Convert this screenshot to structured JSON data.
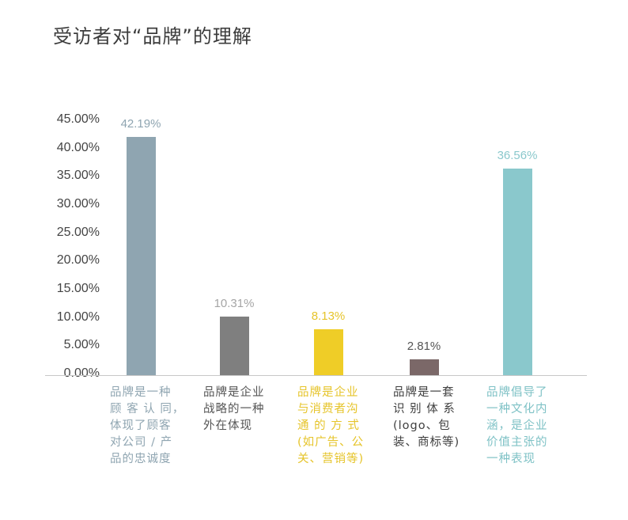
{
  "title": "受访者对“品牌”的理解",
  "y_axis": {
    "ticks": [
      "45.00%",
      "40.00%",
      "35.00%",
      "30.00%",
      "25.00%",
      "20.00%",
      "15.00%",
      "10.00%",
      "5.00%",
      "0.00%"
    ]
  },
  "bars": [
    {
      "value_label": "42.19%",
      "color": "#8fa5b1",
      "label_lines": [
        "品牌是一种",
        "顾 客 认 同，",
        "体现了顾客",
        "对公司 / 产",
        "品的忠诚度"
      ]
    },
    {
      "value_label": "10.31%",
      "color": "#7f7f7f",
      "label_lines": [
        "品牌是企业",
        "战略的一种",
        "外在体现"
      ]
    },
    {
      "value_label": "8.13%",
      "color": "#efcd27",
      "label_lines": [
        "品牌是企业",
        "与消费者沟",
        "通 的 方 式",
        "(如广告、公",
        "关、营销等)"
      ]
    },
    {
      "value_label": "2.81%",
      "color": "#7b6868",
      "label_lines": [
        "品牌是一套",
        "识 别 体 系",
        "(logo、包",
        "装、商标等)"
      ]
    },
    {
      "value_label": "36.56%",
      "color": "#8ac8cc",
      "label_lines": [
        "品牌倡导了",
        "一种文化内",
        "涵，是企业",
        "价值主张的",
        "一种表现"
      ]
    }
  ],
  "chart_data": {
    "type": "bar",
    "title": "受访者对“品牌”的理解",
    "categories": [
      "品牌是一种顾客认同，体现了顾客对公司/产品的忠诚度",
      "品牌是企业战略的一种外在体现",
      "品牌是企业与消费者沟通的方式(如广告、公关、营销等)",
      "品牌是一套识别体系(logo、包装、商标等)",
      "品牌倡导了一种文化内涵，是企业价值主张的一种表现"
    ],
    "values": [
      42.19,
      10.31,
      8.13,
      2.81,
      36.56
    ],
    "value_labels": [
      "42.19%",
      "10.31%",
      "8.13%",
      "2.81%",
      "36.56%"
    ],
    "colors": [
      "#8fa5b1",
      "#7f7f7f",
      "#efcd27",
      "#7b6868",
      "#8ac8cc"
    ],
    "xlabel": "",
    "ylabel": "",
    "ylim": [
      0,
      45
    ],
    "yticks": [
      0,
      5,
      10,
      15,
      20,
      25,
      30,
      35,
      40,
      45
    ],
    "ytick_format": "0.00%",
    "grid": false,
    "legend": null
  }
}
